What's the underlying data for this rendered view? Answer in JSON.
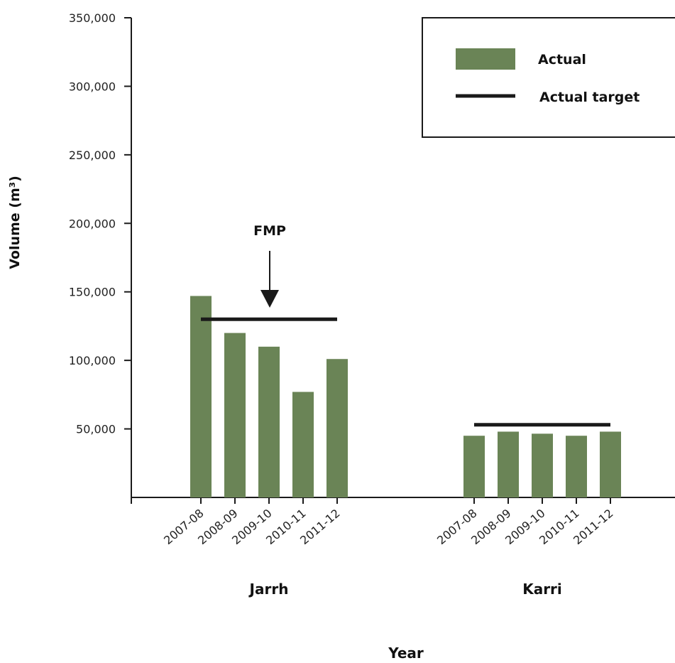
{
  "chart_data": {
    "type": "bar",
    "ylabel": "Volume (m³)",
    "xlabel": "Year",
    "ylim": [
      0,
      350000
    ],
    "y_ticks": [
      50000,
      100000,
      150000,
      200000,
      250000,
      300000,
      350000
    ],
    "y_tick_labels": [
      "50,000",
      "100,000",
      "150,000",
      "200,000",
      "250,000",
      "300,000",
      "350,000"
    ],
    "grid": false,
    "legend_position": "top-right",
    "groups": [
      {
        "label": "Jarrh",
        "categories": [
          "2007-08",
          "2008-09",
          "2009-10",
          "2010-11",
          "2011-12"
        ],
        "values": [
          147000,
          120000,
          110000,
          77000,
          101000
        ],
        "target": 130000,
        "annotation": {
          "text": "FMP",
          "category": "2009-10"
        }
      },
      {
        "label": "Karri",
        "categories": [
          "2007-08",
          "2008-09",
          "2009-10",
          "2010-11",
          "2011-12"
        ],
        "values": [
          45000,
          48000,
          46500,
          45000,
          48000
        ],
        "target": 53000
      }
    ],
    "series": [
      {
        "name": "Actual",
        "kind": "bar",
        "color": "#6a8456"
      },
      {
        "name": "Actual target",
        "kind": "line",
        "color": "#1a1a1a"
      }
    ]
  }
}
